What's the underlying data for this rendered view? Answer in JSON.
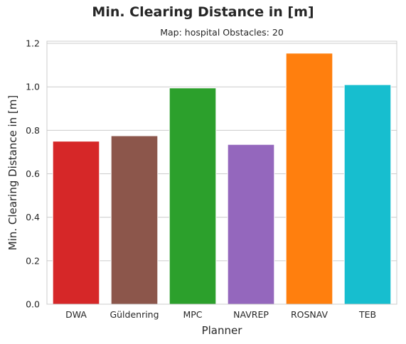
{
  "chart_data": {
    "type": "bar",
    "title": "Min. Clearing Distance in [m]",
    "subtitle": "Map: hospital Obstacles: 20",
    "xlabel": "Planner",
    "ylabel": "Min. Clearing Distance in [m]",
    "categories": [
      "DWA",
      "Güldenring",
      "MPC",
      "NAVREP",
      "ROSNAV",
      "TEB"
    ],
    "values": [
      0.75,
      0.775,
      0.995,
      0.735,
      1.155,
      1.01
    ],
    "colors": [
      "#d62728",
      "#8c564b",
      "#2ca02c",
      "#9467bd",
      "#ff7f0e",
      "#17becf"
    ],
    "ylim": [
      0,
      1.21
    ],
    "yticks": [
      "0.0",
      "0.2",
      "0.4",
      "0.6",
      "0.8",
      "1.0",
      "1.2"
    ],
    "grid": "horizontal"
  }
}
